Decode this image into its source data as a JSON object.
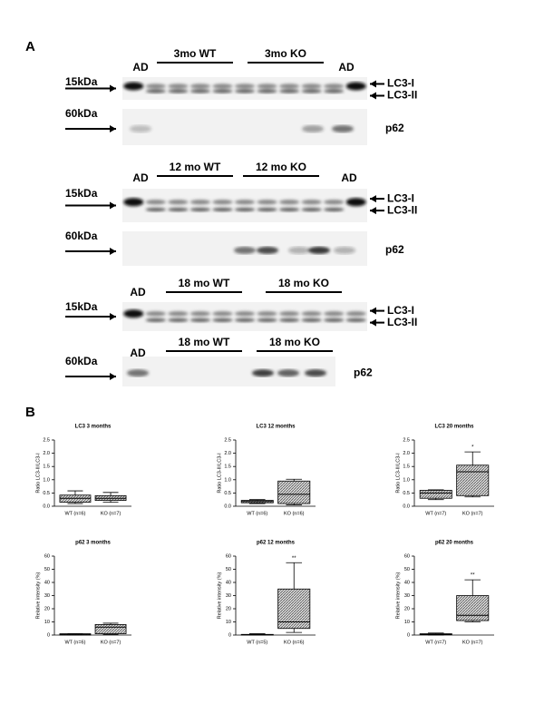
{
  "panel_a": {
    "label": "A",
    "blots": [
      {
        "labels": [
          "AD",
          "3mo WT",
          "3mo KO",
          "AD"
        ],
        "marker": "15kDa",
        "bands": [
          "LC3-I",
          "LC3-II"
        ]
      },
      {
        "marker": "60kDa",
        "bands": [
          "p62"
        ]
      },
      {
        "labels": [
          "AD",
          "12 mo WT",
          "12 mo KO",
          "AD"
        ],
        "marker": "15kDa",
        "bands": [
          "LC3-I",
          "LC3-II"
        ]
      },
      {
        "marker": "60kDa",
        "bands": [
          "p62"
        ]
      },
      {
        "labels": [
          "AD",
          "18 mo WT",
          "18 mo KO"
        ],
        "marker": "15kDa",
        "bands": [
          "LC3-I",
          "LC3-II"
        ]
      },
      {
        "labels": [
          "AD",
          "18 mo WT",
          "18 mo KO"
        ],
        "marker": "60kDa",
        "bands": [
          "p62"
        ]
      }
    ]
  },
  "panel_b": {
    "label": "B"
  },
  "chart_data": [
    {
      "type": "box",
      "title": "LC3 3 months",
      "y_label": "Ratio LC3-II/LC3-I",
      "categories": [
        "WT (n=6)",
        "KO (n=7)"
      ],
      "boxes": [
        {
          "min": 0.1,
          "q1": 0.15,
          "median": 0.3,
          "q3": 0.42,
          "max": 0.58
        },
        {
          "min": 0.15,
          "q1": 0.22,
          "median": 0.3,
          "q3": 0.4,
          "max": 0.52
        }
      ],
      "ylim": [
        0,
        2.5
      ],
      "yticks": [
        {
          "value": 0,
          "label": "0.0"
        },
        {
          "value": 0.5,
          "label": "0.5"
        },
        {
          "value": 1,
          "label": "1.0"
        },
        {
          "value": 1.5,
          "label": "1.5"
        },
        {
          "value": 2,
          "label": "2.0"
        },
        {
          "value": 2.5,
          "label": "2.5"
        }
      ]
    },
    {
      "type": "box",
      "title": "LC3 12 months",
      "y_label": "Ratio LC3-II/LC3-I",
      "categories": [
        "WT (n=6)",
        "KO (n=6)"
      ],
      "boxes": [
        {
          "min": 0.1,
          "q1": 0.13,
          "median": 0.18,
          "q3": 0.22,
          "max": 0.25
        },
        {
          "min": 0.05,
          "q1": 0.1,
          "median": 0.45,
          "q3": 0.95,
          "max": 1.02
        }
      ],
      "ylim": [
        0,
        2.5
      ],
      "yticks": [
        {
          "value": 0,
          "label": "0.0"
        },
        {
          "value": 0.5,
          "label": "0.5"
        },
        {
          "value": 1,
          "label": "1.0"
        },
        {
          "value": 1.5,
          "label": "1.5"
        },
        {
          "value": 2,
          "label": "2.0"
        },
        {
          "value": 2.5,
          "label": "2.5"
        }
      ]
    },
    {
      "type": "box",
      "title": "LC3 20 months",
      "y_label": "Ratio LC3-II/LC3-I",
      "categories": [
        "WT (n=7)",
        "KO (n=7)"
      ],
      "boxes": [
        {
          "min": 0.25,
          "q1": 0.3,
          "median": 0.5,
          "q3": 0.6,
          "max": 0.62
        },
        {
          "min": 0.35,
          "q1": 0.4,
          "median": 1.3,
          "q3": 1.55,
          "max": 2.05
        }
      ],
      "annotations": [
        null,
        "*"
      ],
      "ylim": [
        0,
        2.5
      ],
      "yticks": [
        {
          "value": 0,
          "label": "0.0"
        },
        {
          "value": 0.5,
          "label": "0.5"
        },
        {
          "value": 1,
          "label": "1.0"
        },
        {
          "value": 1.5,
          "label": "1.5"
        },
        {
          "value": 2,
          "label": "2.0"
        },
        {
          "value": 2.5,
          "label": "2.5"
        }
      ]
    },
    {
      "type": "box",
      "title": "p62 3 months",
      "y_label": "Relative intensity (%)",
      "categories": [
        "WT (n=6)",
        "KO (n=7)"
      ],
      "boxes": [
        {
          "min": 0,
          "q1": 0,
          "median": 0.5,
          "q3": 1,
          "max": 1
        },
        {
          "min": 0.5,
          "q1": 1,
          "median": 6,
          "q3": 8,
          "max": 9
        }
      ],
      "ylim": [
        0,
        60
      ],
      "yticks": [
        0,
        10,
        20,
        30,
        40,
        50,
        60
      ]
    },
    {
      "type": "box",
      "title": "p62 12 months",
      "y_label": "Relative intensity (%)",
      "categories": [
        "WT (n=5)",
        "KO (n=6)"
      ],
      "boxes": [
        {
          "min": 0,
          "q1": 0,
          "median": 0.3,
          "q3": 0.5,
          "max": 1
        },
        {
          "min": 2,
          "q1": 5,
          "median": 10,
          "q3": 35,
          "max": 55
        }
      ],
      "annotations": [
        null,
        "**"
      ],
      "ylim": [
        0,
        60
      ],
      "yticks": [
        0,
        10,
        20,
        30,
        40,
        50,
        60
      ]
    },
    {
      "type": "box",
      "title": "p62 20 months",
      "y_label": "Relative intensity (%)",
      "categories": [
        "WT (n=7)",
        "KO (n=7)"
      ],
      "boxes": [
        {
          "min": 0,
          "q1": 0.3,
          "median": 0.5,
          "q3": 1,
          "max": 1.5
        },
        {
          "min": 10,
          "q1": 11,
          "median": 15,
          "q3": 30,
          "max": 42
        }
      ],
      "annotations": [
        null,
        "**"
      ],
      "ylim": [
        0,
        60
      ],
      "yticks": [
        0,
        10,
        20,
        30,
        40,
        50,
        60
      ]
    }
  ]
}
